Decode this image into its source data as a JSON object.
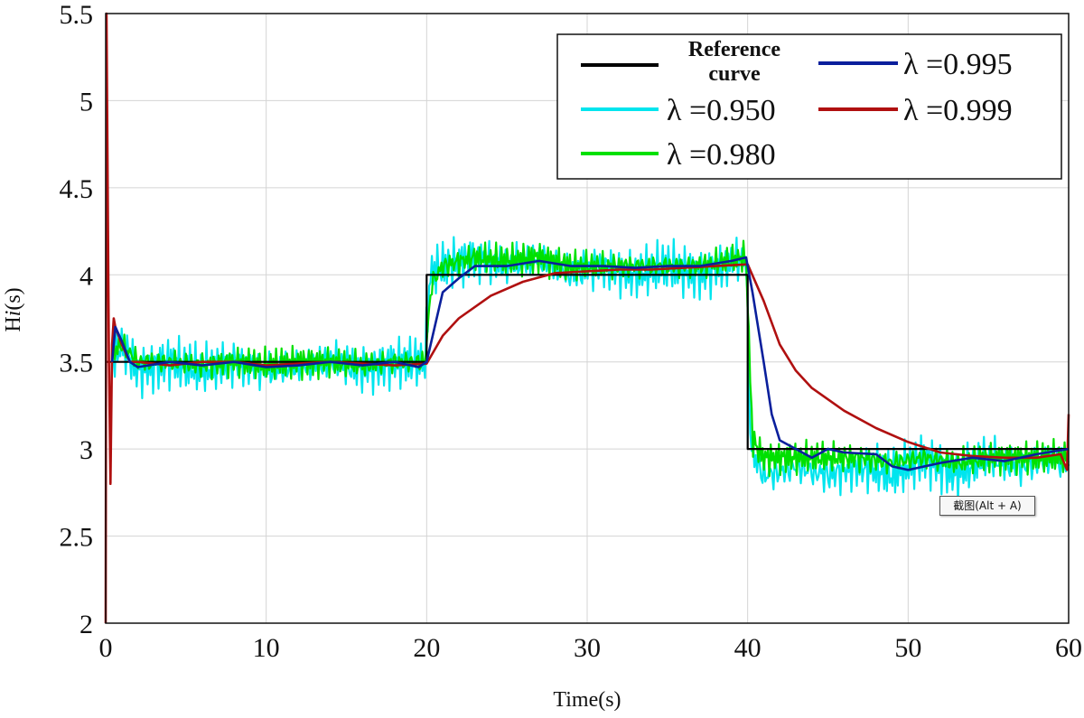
{
  "chart_data": {
    "type": "line",
    "title": "",
    "xlabel": "Time(s)",
    "ylabel": "Hi(s)",
    "ylabel_parts": [
      "H",
      "i",
      "(s)"
    ],
    "xlim": [
      0,
      60
    ],
    "ylim": [
      2,
      5.5
    ],
    "xticks": [
      "0",
      "10",
      "20",
      "30",
      "40",
      "50",
      "60"
    ],
    "yticks": [
      "2",
      "2.5",
      "3",
      "3.5",
      "4",
      "4.5",
      "5",
      "5.5"
    ],
    "grid": true,
    "legend_position": "top-right",
    "series": [
      {
        "name": "Reference curve",
        "name_lines": [
          "Reference",
          "curve"
        ],
        "color": "#000000",
        "x": [
          0,
          20,
          20,
          40,
          40,
          60
        ],
        "y": [
          3.5,
          3.5,
          4.0,
          4.0,
          3.0,
          3.0
        ]
      },
      {
        "name": "λ =0.950",
        "color": "#00e5ee",
        "x": [
          0.4,
          1,
          2,
          4,
          6,
          8,
          10,
          12,
          14,
          16,
          18,
          19.9,
          20.2,
          21,
          23,
          25,
          27,
          29,
          31,
          33,
          35,
          37,
          39.9,
          40.2,
          41,
          43,
          45,
          47,
          49,
          51,
          53,
          55,
          57,
          59,
          60
        ],
        "y": [
          3.5,
          3.6,
          3.45,
          3.5,
          3.45,
          3.5,
          3.45,
          3.48,
          3.5,
          3.45,
          3.5,
          3.5,
          4.0,
          4.05,
          4.1,
          4.05,
          4.1,
          4.0,
          4.05,
          4.0,
          4.05,
          4.0,
          4.1,
          3.0,
          2.85,
          2.9,
          2.85,
          2.9,
          2.85,
          2.95,
          2.85,
          2.95,
          2.9,
          2.95,
          2.9
        ],
        "noise_amplitude": 0.16
      },
      {
        "name": "λ =0.980",
        "color": "#00e000",
        "x": [
          0.4,
          1,
          2,
          4,
          6,
          8,
          10,
          12,
          14,
          16,
          18,
          19.9,
          20.3,
          21,
          23,
          25,
          27,
          29,
          31,
          33,
          35,
          37,
          39.9,
          40.3,
          41,
          43,
          45,
          47,
          49,
          51,
          53,
          55,
          57,
          59,
          60
        ],
        "y": [
          3.55,
          3.6,
          3.5,
          3.5,
          3.48,
          3.5,
          3.48,
          3.5,
          3.5,
          3.48,
          3.5,
          3.5,
          3.95,
          4.05,
          4.1,
          4.08,
          4.1,
          4.05,
          4.05,
          4.05,
          4.05,
          4.05,
          4.1,
          3.05,
          2.95,
          2.95,
          2.95,
          2.95,
          2.92,
          2.95,
          2.92,
          2.95,
          2.95,
          2.95,
          2.95
        ],
        "noise_amplitude": 0.1
      },
      {
        "name": "λ =0.995",
        "color": "#0a1f9c",
        "x": [
          0.4,
          0.6,
          1,
          1.5,
          2,
          4,
          6,
          8,
          10,
          12,
          14,
          16,
          18,
          19.5,
          20,
          20.5,
          21,
          22,
          23,
          25,
          27,
          29,
          31,
          33,
          35,
          37,
          39,
          39.9,
          40.3,
          41,
          41.5,
          42,
          43,
          44,
          45,
          46,
          48,
          49,
          50,
          52,
          54,
          56,
          58,
          60
        ],
        "y": [
          3.5,
          3.7,
          3.62,
          3.5,
          3.47,
          3.5,
          3.48,
          3.5,
          3.47,
          3.48,
          3.5,
          3.48,
          3.5,
          3.47,
          3.5,
          3.7,
          3.9,
          3.98,
          4.05,
          4.05,
          4.08,
          4.05,
          4.05,
          4.04,
          4.05,
          4.05,
          4.08,
          4.1,
          3.9,
          3.5,
          3.2,
          3.05,
          3.0,
          2.95,
          3.0,
          2.98,
          2.97,
          2.9,
          2.88,
          2.92,
          2.95,
          2.93,
          2.97,
          3.0
        ]
      },
      {
        "name": "λ =0.999",
        "color": "#b01010",
        "x": [
          0,
          0.05,
          0.2,
          0.3,
          0.4,
          0.5,
          0.6,
          1,
          1.5,
          2,
          4,
          6,
          8,
          10,
          12,
          14,
          16,
          18,
          20,
          21,
          22,
          24,
          26,
          28,
          30,
          32,
          34,
          36,
          38,
          40,
          41,
          42,
          43,
          44,
          46,
          48,
          50,
          52,
          54,
          56,
          58,
          59.5,
          59.9,
          60
        ],
        "y": [
          2.0,
          5.5,
          3.5,
          2.8,
          3.6,
          3.75,
          3.7,
          3.6,
          3.5,
          3.5,
          3.48,
          3.5,
          3.5,
          3.48,
          3.49,
          3.5,
          3.49,
          3.48,
          3.49,
          3.65,
          3.75,
          3.88,
          3.96,
          4.01,
          4.02,
          4.03,
          4.03,
          4.04,
          4.05,
          4.06,
          3.85,
          3.6,
          3.45,
          3.35,
          3.22,
          3.12,
          3.04,
          2.98,
          2.96,
          2.95,
          2.95,
          2.97,
          2.88,
          3.2
        ]
      }
    ]
  },
  "tooltip": "截图(Alt + A)"
}
